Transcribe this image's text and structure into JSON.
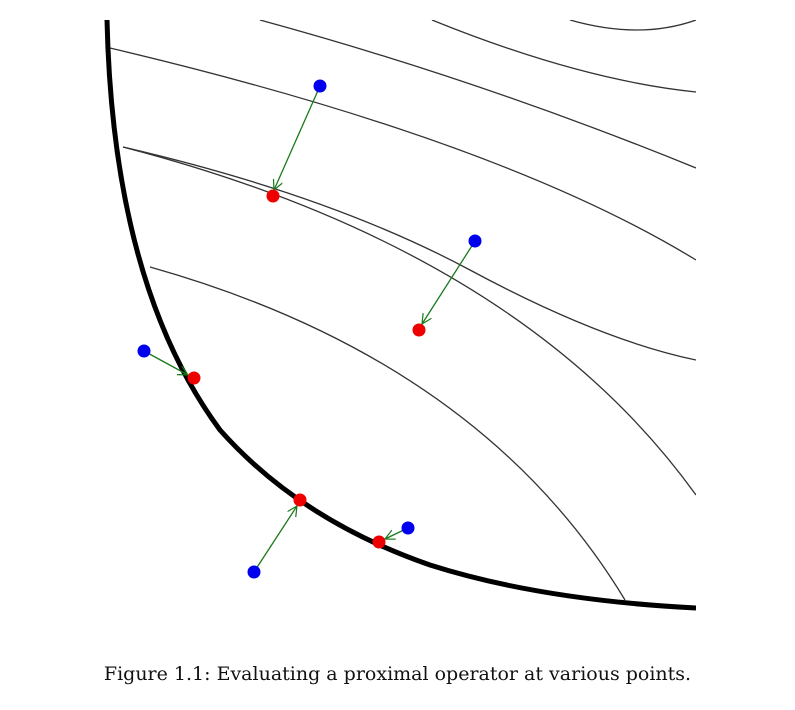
{
  "figure": {
    "caption": "Figure 1.1: Evaluating a proximal operator at various points.",
    "colors": {
      "boundary": "#000000",
      "contour": "#333333",
      "input_point": "#0000ee",
      "prox_point": "#ee0000",
      "arrow": "#1a7a1a"
    },
    "icons": {
      "input_point": "blue-dot",
      "prox_point": "red-dot",
      "arrow": "green-arrow"
    }
  }
}
